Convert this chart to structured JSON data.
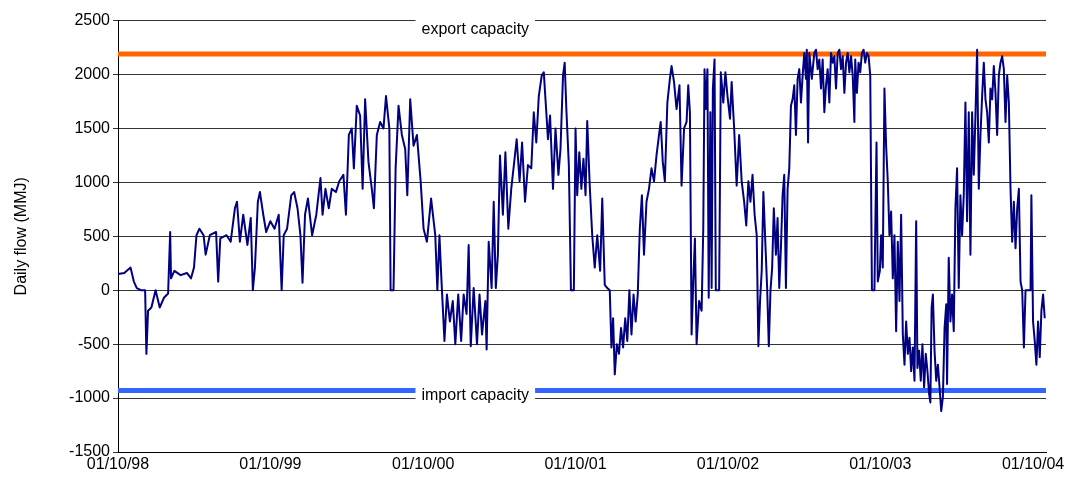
{
  "chart_data": {
    "type": "line",
    "ylabel": "Daily flow (MMJ)",
    "x": [
      "1998-10-01",
      "1998-10-16",
      "1998-10-31",
      "1998-11-08",
      "1998-11-15",
      "1998-11-25",
      "1998-12-05",
      "1998-12-08",
      "1998-12-12",
      "1998-12-20",
      "1998-12-30",
      "1999-01-09",
      "1999-01-19",
      "1999-01-29",
      "1999-02-03",
      "1999-02-05",
      "1999-02-13",
      "1999-02-28",
      "1999-03-15",
      "1999-03-25",
      "1999-04-01",
      "1999-04-07",
      "1999-04-14",
      "1999-04-24",
      "1999-04-29",
      "1999-05-09",
      "1999-05-24",
      "1999-05-29",
      "1999-06-03",
      "1999-06-18",
      "1999-06-28",
      "1999-07-08",
      "1999-07-13",
      "1999-07-20",
      "1999-07-28",
      "1999-08-07",
      "1999-08-15",
      "1999-08-20",
      "1999-08-25",
      "1999-09-01",
      "1999-09-06",
      "1999-09-14",
      "1999-09-21",
      "1999-10-01",
      "1999-10-11",
      "1999-10-21",
      "1999-10-28",
      "1999-11-02",
      "1999-11-10",
      "1999-11-20",
      "1999-11-27",
      "1999-12-05",
      "1999-12-12",
      "1999-12-17",
      "1999-12-23",
      "1999-12-30",
      "2000-01-09",
      "2000-01-19",
      "2000-01-29",
      "2000-02-03",
      "2000-02-10",
      "2000-02-18",
      "2000-02-25",
      "2000-03-06",
      "2000-03-14",
      "2000-03-24",
      "2000-03-30",
      "2000-04-06",
      "2000-04-13",
      "2000-04-18",
      "2000-04-25",
      "2000-05-03",
      "2000-05-09",
      "2000-05-15",
      "2000-05-23",
      "2000-05-31",
      "2000-06-05",
      "2000-06-12",
      "2000-06-20",
      "2000-06-28",
      "2000-07-04",
      "2000-07-12",
      "2000-07-15",
      "2000-07-22",
      "2000-07-27",
      "2000-08-03",
      "2000-08-11",
      "2000-08-19",
      "2000-08-24",
      "2000-08-31",
      "2000-09-08",
      "2000-09-16",
      "2000-09-25",
      "2000-10-02",
      "2000-10-10",
      "2000-10-20",
      "2000-10-30",
      "2000-11-04",
      "2000-11-09",
      "2000-11-14",
      "2000-11-21",
      "2000-11-27",
      "2000-12-04",
      "2000-12-11",
      "2000-12-17",
      "2000-12-24",
      "2000-12-31",
      "2001-01-06",
      "2001-01-13",
      "2001-01-18",
      "2001-01-23",
      "2001-01-30",
      "2001-02-07",
      "2001-02-13",
      "2001-02-19",
      "2001-02-27",
      "2001-03-02",
      "2001-03-07",
      "2001-03-14",
      "2001-03-19",
      "2001-03-24",
      "2001-03-29",
      "2001-04-03",
      "2001-04-10",
      "2001-04-16",
      "2001-04-23",
      "2001-04-30",
      "2001-05-08",
      "2001-05-13",
      "2001-05-20",
      "2001-05-26",
      "2001-06-02",
      "2001-06-09",
      "2001-06-17",
      "2001-06-23",
      "2001-06-29",
      "2001-07-05",
      "2001-07-12",
      "2001-07-17",
      "2001-07-22",
      "2001-07-27",
      "2001-08-01",
      "2001-08-08",
      "2001-08-14",
      "2001-08-21",
      "2001-08-26",
      "2001-09-01",
      "2001-09-05",
      "2001-09-09",
      "2001-09-15",
      "2001-09-20",
      "2001-09-27",
      "2001-10-01",
      "2001-10-05",
      "2001-10-10",
      "2001-10-15",
      "2001-10-20",
      "2001-10-25",
      "2001-10-29",
      "2001-11-04",
      "2001-11-10",
      "2001-11-16",
      "2001-11-22",
      "2001-11-29",
      "2001-12-04",
      "2001-12-10",
      "2001-12-16",
      "2001-12-22",
      "2001-12-26",
      "2001-12-30",
      "2002-01-03",
      "2002-01-08",
      "2002-01-13",
      "2002-01-18",
      "2002-01-23",
      "2002-01-28",
      "2002-02-02",
      "2002-02-07",
      "2002-02-12",
      "2002-02-17",
      "2002-02-22",
      "2002-02-27",
      "2002-03-04",
      "2002-03-09",
      "2002-03-14",
      "2002-03-20",
      "2002-03-26",
      "2002-04-01",
      "2002-04-07",
      "2002-04-13",
      "2002-04-19",
      "2002-04-23",
      "2002-04-28",
      "2002-05-03",
      "2002-05-09",
      "2002-05-15",
      "2002-05-19",
      "2002-05-25",
      "2002-05-31",
      "2002-06-07",
      "2002-06-12",
      "2002-06-18",
      "2002-06-24",
      "2002-06-28",
      "2002-07-02",
      "2002-07-06",
      "2002-07-10",
      "2002-07-14",
      "2002-07-18",
      "2002-07-24",
      "2002-07-30",
      "2002-08-03",
      "2002-08-06",
      "2002-08-09",
      "2002-08-13",
      "2002-08-16",
      "2002-08-20",
      "2002-08-23",
      "2002-08-26",
      "2002-08-30",
      "2002-09-02",
      "2002-09-10",
      "2002-09-14",
      "2002-09-20",
      "2002-09-25",
      "2002-09-30",
      "2002-10-06",
      "2002-10-10",
      "2002-10-16",
      "2002-10-22",
      "2002-10-28",
      "2002-11-03",
      "2002-11-09",
      "2002-11-14",
      "2002-11-19",
      "2002-11-24",
      "2002-11-29",
      "2002-12-04",
      "2002-12-09",
      "2002-12-13",
      "2002-12-17",
      "2002-12-21",
      "2002-12-25",
      "2002-12-29",
      "2003-01-03",
      "2003-01-07",
      "2003-01-11",
      "2003-01-15",
      "2003-01-19",
      "2003-01-24",
      "2003-01-28",
      "2003-02-01",
      "2003-02-05",
      "2003-02-09",
      "2003-02-13",
      "2003-02-17",
      "2003-02-21",
      "2003-02-25",
      "2003-03-01",
      "2003-03-05",
      "2003-03-09",
      "2003-03-13",
      "2003-03-17",
      "2003-03-21",
      "2003-03-25",
      "2003-03-29",
      "2003-04-02",
      "2003-04-06",
      "2003-04-08",
      "2003-04-11",
      "2003-04-14",
      "2003-04-20",
      "2003-04-26",
      "2003-04-30",
      "2003-05-04",
      "2003-05-08",
      "2003-05-12",
      "2003-05-16",
      "2003-05-20",
      "2003-05-24",
      "2003-05-28",
      "2003-06-01",
      "2003-06-05",
      "2003-06-09",
      "2003-06-13",
      "2003-06-17",
      "2003-06-21",
      "2003-06-25",
      "2003-06-29",
      "2003-07-03",
      "2003-07-07",
      "2003-07-11",
      "2003-07-15",
      "2003-07-19",
      "2003-07-23",
      "2003-07-27",
      "2003-07-31",
      "2003-08-02",
      "2003-08-06",
      "2003-08-10",
      "2003-08-14",
      "2003-08-18",
      "2003-08-22",
      "2003-08-26",
      "2003-08-30",
      "2003-09-03",
      "2003-09-07",
      "2003-09-11",
      "2003-09-17",
      "2003-09-22",
      "2003-09-25",
      "2003-09-30",
      "2003-10-03",
      "2003-10-07",
      "2003-10-11",
      "2003-10-15",
      "2003-10-19",
      "2003-10-23",
      "2003-10-27",
      "2003-10-31",
      "2003-11-04",
      "2003-11-08",
      "2003-11-12",
      "2003-11-16",
      "2003-11-20",
      "2003-11-24",
      "2003-11-28",
      "2003-12-02",
      "2003-12-06",
      "2003-12-10",
      "2003-12-14",
      "2003-12-18",
      "2003-12-22",
      "2003-12-26",
      "2003-12-29",
      "2004-01-02",
      "2004-01-06",
      "2004-01-10",
      "2004-01-14",
      "2004-01-18",
      "2004-01-22",
      "2004-01-26",
      "2004-01-29",
      "2004-02-01",
      "2004-02-04",
      "2004-02-08",
      "2004-02-12",
      "2004-02-16",
      "2004-02-20",
      "2004-02-24",
      "2004-02-28",
      "2004-03-03",
      "2004-03-07",
      "2004-03-09",
      "2004-03-13",
      "2004-03-17",
      "2004-03-21",
      "2004-03-25",
      "2004-03-29",
      "2004-04-02",
      "2004-04-06",
      "2004-04-10",
      "2004-04-14",
      "2004-04-18",
      "2004-04-22",
      "2004-04-26",
      "2004-04-30",
      "2004-05-04",
      "2004-05-08",
      "2004-05-12",
      "2004-05-16",
      "2004-05-20",
      "2004-05-24",
      "2004-05-28",
      "2004-06-01",
      "2004-06-05",
      "2004-06-09",
      "2004-06-13",
      "2004-06-17",
      "2004-06-21",
      "2004-06-25",
      "2004-06-29",
      "2004-07-03",
      "2004-07-07",
      "2004-07-11",
      "2004-07-15",
      "2004-07-19",
      "2004-07-23",
      "2004-07-27",
      "2004-07-31",
      "2004-08-04",
      "2004-08-08",
      "2004-08-12",
      "2004-08-16",
      "2004-08-20",
      "2004-08-24",
      "2004-08-28",
      "2004-09-01",
      "2004-09-05",
      "2004-09-09",
      "2004-09-13",
      "2004-09-25",
      "2004-09-27",
      "2004-10-01",
      "2004-10-05",
      "2004-10-09",
      "2004-10-13",
      "2004-10-17",
      "2004-10-21",
      "2004-10-25",
      "2004-10-29"
    ],
    "series": [
      {
        "color": "#000080",
        "values": [
          150,
          160,
          210,
          80,
          20,
          0,
          0,
          -590,
          -190,
          -160,
          0,
          -160,
          -70,
          -30,
          540,
          110,
          180,
          140,
          160,
          110,
          210,
          510,
          570,
          510,
          330,
          510,
          540,
          80,
          480,
          510,
          450,
          760,
          820,
          450,
          700,
          420,
          670,
          0,
          210,
          820,
          910,
          700,
          540,
          640,
          570,
          700,
          0,
          510,
          570,
          880,
          910,
          760,
          510,
          70,
          700,
          850,
          510,
          700,
          1040,
          700,
          940,
          760,
          940,
          910,
          1010,
          1070,
          700,
          1440,
          1500,
          1130,
          1710,
          1620,
          940,
          1770,
          1190,
          940,
          760,
          1440,
          1560,
          1500,
          1800,
          1500,
          0,
          0,
          1130,
          1710,
          1440,
          1310,
          880,
          1770,
          1340,
          1440,
          1010,
          570,
          450,
          850,
          510,
          0,
          510,
          80,
          -470,
          -40,
          -290,
          -100,
          -500,
          -40,
          -470,
          -40,
          -220,
          420,
          -520,
          20,
          -500,
          -40,
          -410,
          -100,
          -550,
          450,
          20,
          820,
          20,
          330,
          1250,
          700,
          1280,
          570,
          940,
          1220,
          1400,
          1010,
          1370,
          820,
          1160,
          1130,
          1650,
          1370,
          1800,
          1990,
          2020,
          1710,
          1400,
          1620,
          940,
          1500,
          1070,
          1310,
          1990,
          2110,
          1680,
          1160,
          0,
          0,
          1500,
          880,
          1280,
          940,
          1220,
          880,
          1570,
          970,
          510,
          210,
          510,
          180,
          850,
          50,
          20,
          0,
          -530,
          -260,
          -780,
          -500,
          -590,
          -350,
          -530,
          -260,
          -470,
          0,
          -410,
          -40,
          -290,
          -40,
          570,
          880,
          330,
          820,
          940,
          1130,
          1010,
          1250,
          1440,
          1560,
          1190,
          1010,
          1740,
          1960,
          2080,
          1930,
          1680,
          1900,
          970,
          1500,
          1560,
          1900,
          1650,
          -410,
          80,
          480,
          -500,
          -100,
          -190,
          570,
          2050,
          1680,
          2050,
          -70,
          1650,
          20,
          1870,
          2140,
          0,
          0,
          2020,
          1740,
          2020,
          1800,
          1590,
          1930,
          1500,
          970,
          1440,
          1010,
          820,
          600,
          1010,
          820,
          1070,
          700,
          510,
          -520,
          -100,
          180,
          910,
          510,
          20,
          -520,
          0,
          210,
          760,
          330,
          670,
          20,
          390,
          880,
          1070,
          20,
          940,
          1130,
          1710,
          1770,
          1900,
          1440,
          1960,
          2050,
          1740,
          1990,
          2200,
          1960,
          2230,
          1370,
          2200,
          1960,
          2200,
          2230,
          2050,
          2140,
          1870,
          2140,
          1650,
          1900,
          2050,
          1740,
          2200,
          2110,
          2170,
          1870,
          2200,
          2230,
          2050,
          2170,
          1830,
          2110,
          2200,
          2020,
          2170,
          1990,
          1560,
          2140,
          1830,
          2110,
          2020,
          2200,
          2230,
          2110,
          2200,
          2170,
          1990,
          0,
          0,
          1370,
          80,
          180,
          510,
          210,
          1870,
          1340,
          1010,
          510,
          730,
          110,
          510,
          -380,
          450,
          -100,
          700,
          -410,
          -690,
          -290,
          -590,
          -440,
          -750,
          -530,
          -840,
          640,
          -720,
          -560,
          -840,
          -500,
          -900,
          -590,
          -750,
          -960,
          -1040,
          -160,
          -40,
          -560,
          -840,
          -690,
          -900,
          -1120,
          -990,
          -350,
          -130,
          -870,
          300,
          -290,
          -40,
          -380,
          760,
          1130,
          20,
          880,
          510,
          880,
          1740,
          640,
          1650,
          330,
          1650,
          1070,
          1620,
          2230,
          940,
          1440,
          1800,
          2110,
          1770,
          1650,
          1370,
          1870,
          1770,
          2080,
          1830,
          1440,
          1990,
          2110,
          2170,
          2050,
          1560,
          1990,
          1740,
          940,
          450,
          820,
          390,
          760,
          940,
          80,
          0,
          -530,
          0,
          0,
          880,
          -290,
          -470,
          -690,
          -290,
          -620,
          -190,
          -40,
          -260
        ]
      }
    ],
    "xlim": [
      "1998-10-01",
      "2004-11-01"
    ],
    "xticks": [
      {
        "value": "1998-10-01",
        "label": "01/10/98"
      },
      {
        "value": "1999-10-01",
        "label": "01/10/99"
      },
      {
        "value": "2000-10-01",
        "label": "01/10/00"
      },
      {
        "value": "2001-10-01",
        "label": "01/10/01"
      },
      {
        "value": "2002-10-01",
        "label": "01/10/02"
      },
      {
        "value": "2003-10-01",
        "label": "01/10/03"
      },
      {
        "value": "2004-10-01",
        "label": "01/10/04"
      }
    ],
    "ylim": [
      -1500,
      2500
    ],
    "yticks": [
      -1500,
      -1000,
      -500,
      0,
      500,
      1000,
      1500,
      2000,
      2500
    ],
    "grid": "y",
    "legend": false,
    "marker": "none",
    "line_style": "solid",
    "ref_lines": [
      {
        "axis": "y",
        "value": 2190,
        "label": "export capacity",
        "color": "#ff6600"
      },
      {
        "axis": "y",
        "value": -930,
        "label": "import capacity",
        "color": "#3366ff"
      }
    ]
  }
}
